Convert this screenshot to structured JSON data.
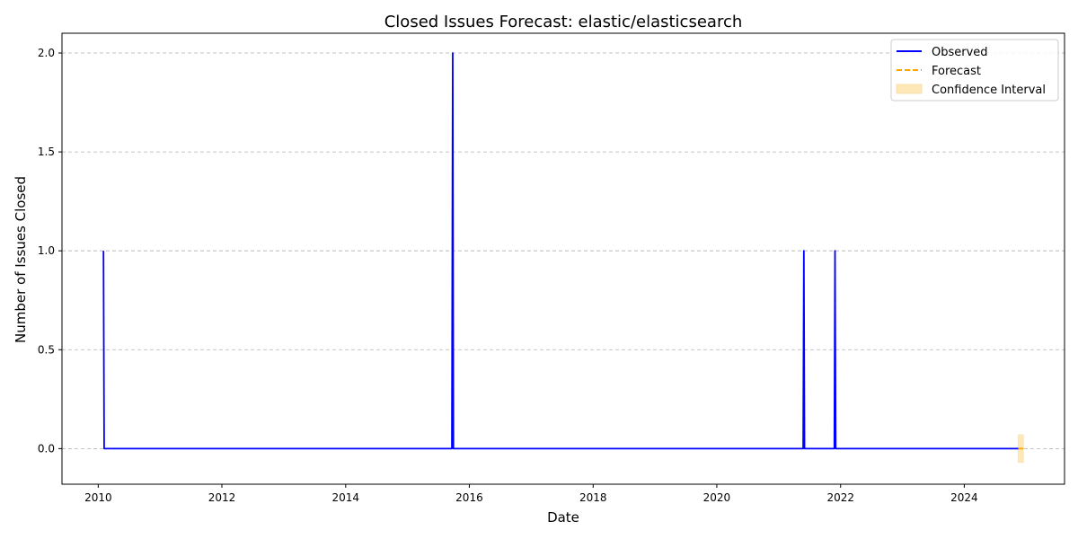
{
  "chart_data": {
    "type": "line",
    "title": "Closed Issues Forecast: elastic/elasticsearch",
    "xlabel": "Date",
    "ylabel": "Number of Issues Closed",
    "xlim": [
      "2009-06-01",
      "2025-08-15"
    ],
    "ylim": [
      -0.18,
      2.1
    ],
    "x_ticks": [
      "2010",
      "2012",
      "2014",
      "2016",
      "2018",
      "2020",
      "2022",
      "2024"
    ],
    "y_ticks": [
      "0.0",
      "0.5",
      "1.0",
      "1.5",
      "2.0"
    ],
    "grid": "y-dashed",
    "legend_position": "top-right",
    "colors": {
      "observed": "#0000ff",
      "forecast": "#ffa500",
      "confidence": "#ffe8b8"
    },
    "series": [
      {
        "name": "Observed",
        "style": "solid",
        "points": [
          [
            "2010-02-01",
            1
          ],
          [
            "2010-02-05",
            0
          ],
          [
            "2015-09-20",
            0
          ],
          [
            "2015-09-25",
            2
          ],
          [
            "2015-09-29",
            0
          ],
          [
            "2021-05-25",
            0
          ],
          [
            "2021-05-29",
            1
          ],
          [
            "2021-06-02",
            0
          ],
          [
            "2021-11-25",
            0
          ],
          [
            "2021-11-29",
            1
          ],
          [
            "2021-12-03",
            0
          ],
          [
            "2024-11-15",
            0
          ]
        ]
      },
      {
        "name": "Forecast",
        "style": "dashed",
        "points": [
          [
            "2024-11-15",
            0
          ],
          [
            "2024-12-15",
            0
          ]
        ]
      }
    ],
    "confidence_interval": {
      "name": "Confidence Interval",
      "x": [
        "2024-11-15",
        "2024-12-15"
      ],
      "lower": -0.07,
      "upper": 0.07
    }
  }
}
